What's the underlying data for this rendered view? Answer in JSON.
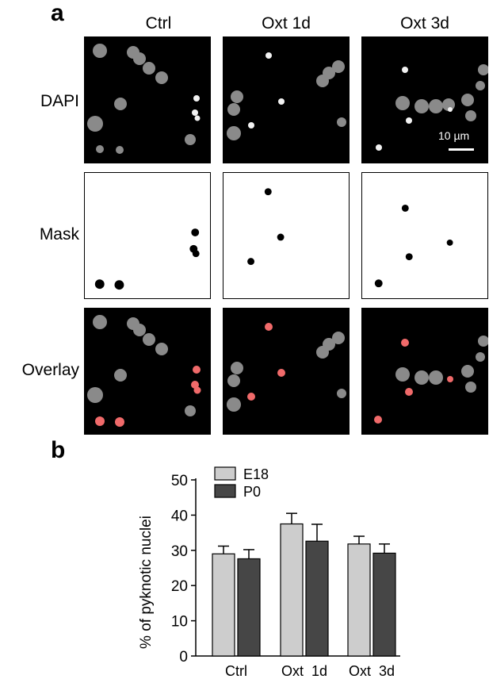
{
  "figure": {
    "panel_a_letter": "a",
    "panel_b_letter": "b",
    "columns": [
      "Ctrl",
      "Oxt 1d",
      "Oxt 3d"
    ],
    "rows": [
      "DAPI",
      "Mask",
      "Overlay"
    ],
    "scale_bar_label": "10 µm"
  },
  "colors": {
    "tile_background": "#000000",
    "nucleus": "#8c8c8c",
    "pyknotic_bright": "#f2f2f2",
    "mask_fill": "#000000",
    "overlay_highlight": "#f06a6a",
    "E18_bar": "#cdcdcd",
    "P0_bar": "#464646"
  },
  "chart_data": {
    "type": "bar",
    "categories": [
      "Ctrl",
      "Oxt  1d",
      "Oxt  3d"
    ],
    "series": [
      {
        "name": "E18",
        "values": [
          29,
          37.5,
          31.8
        ],
        "errors": [
          2.2,
          3.0,
          2.2
        ],
        "color": "#cdcdcd"
      },
      {
        "name": "P0",
        "values": [
          27.6,
          32.6,
          29.2
        ],
        "errors": [
          2.6,
          4.8,
          2.6
        ],
        "color": "#464646"
      }
    ],
    "title": "",
    "xlabel": "",
    "ylabel": "% of pyknotic nuclei",
    "ylim": [
      0,
      50
    ],
    "yticks": [
      0,
      10,
      20,
      30,
      40,
      50
    ],
    "legend_position": "top-left",
    "grid": false
  }
}
